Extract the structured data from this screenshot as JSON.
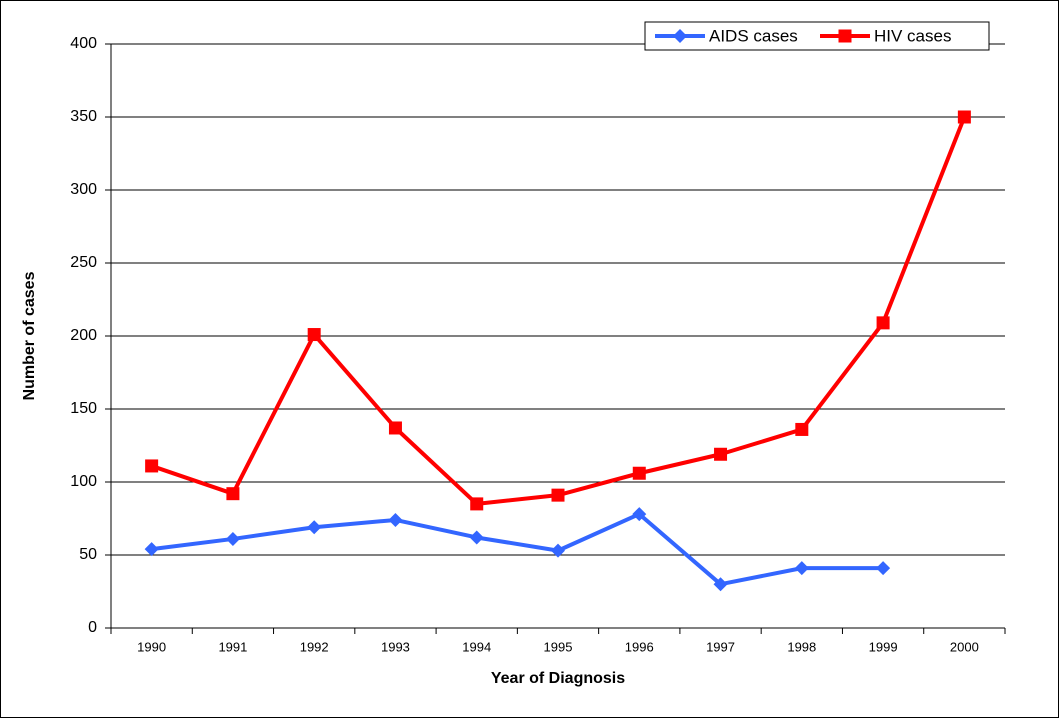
{
  "chart_data": {
    "type": "line",
    "x_label": "Year of Diagnosis",
    "y_label": "Number of cases",
    "categories": [
      "1990",
      "1991",
      "1992",
      "1993",
      "1994",
      "1995",
      "1996",
      "1997",
      "1998",
      "1999",
      "2000"
    ],
    "series": [
      {
        "name": "AIDS cases",
        "color": "#3366ff",
        "marker": "diamond",
        "values": [
          54,
          61,
          69,
          74,
          62,
          53,
          78,
          30,
          41,
          41,
          null
        ]
      },
      {
        "name": "HIV cases",
        "color": "#ff0000",
        "marker": "square",
        "values": [
          111,
          92,
          201,
          137,
          85,
          91,
          106,
          119,
          136,
          209,
          350
        ]
      }
    ],
    "ylim": [
      0,
      400
    ],
    "yticks": [
      0,
      50,
      100,
      150,
      200,
      250,
      300,
      350,
      400
    ],
    "grid": true,
    "legend": "top-right"
  }
}
